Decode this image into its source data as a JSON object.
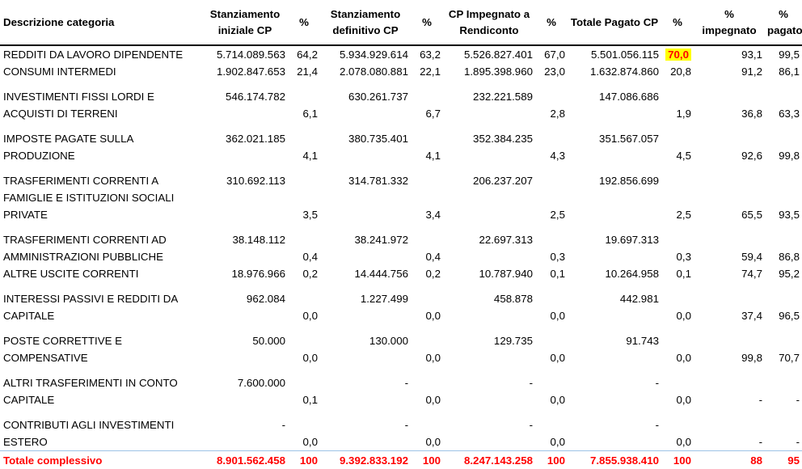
{
  "headers": {
    "desc": "Descrizione categoria",
    "stanz_iniz": "Stanziamento iniziale CP",
    "pct1": "%",
    "stanz_def": "Stanziamento definitivo CP",
    "pct2": "%",
    "cp_imp": "CP Impegnato a Rendiconto",
    "pct3": "%",
    "tot_pag": "Totale Pagato CP",
    "pct4": "%",
    "pct_imp": "% impegnato",
    "pct_pag": "% pagato"
  },
  "rows": [
    {
      "desc": [
        "REDDITI DA LAVORO DIPENDENTE"
      ],
      "stanz_iniz": "5.714.089.563",
      "pct1": "64,2",
      "stanz_def": "5.934.929.614",
      "pct2": "63,2",
      "cp_imp": "5.526.827.401",
      "pct3": "67,0",
      "tot_pag": "5.501.056.115",
      "pct4": "70,0",
      "pct_imp": "93,1",
      "pct_pag": "99,5"
    },
    {
      "desc": [
        "CONSUMI INTERMEDI"
      ],
      "stanz_iniz": "1.902.847.653",
      "pct1": "21,4",
      "stanz_def": "2.078.080.881",
      "pct2": "22,1",
      "cp_imp": "1.895.398.960",
      "pct3": "23,0",
      "tot_pag": "1.632.874.860",
      "pct4": "20,8",
      "pct_imp": "91,2",
      "pct_pag": "86,1"
    },
    {
      "desc": [
        "INVESTIMENTI FISSI LORDI E",
        "ACQUISTI DI TERRENI"
      ],
      "stanz_iniz": "546.174.782",
      "pct1": "6,1",
      "stanz_def": "630.261.737",
      "pct2": "6,7",
      "cp_imp": "232.221.589",
      "pct3": "2,8",
      "tot_pag": "147.086.686",
      "pct4": "1,9",
      "pct_imp": "36,8",
      "pct_pag": "63,3"
    },
    {
      "desc": [
        "IMPOSTE PAGATE SULLA",
        "PRODUZIONE"
      ],
      "stanz_iniz": "362.021.185",
      "pct1": "4,1",
      "stanz_def": "380.735.401",
      "pct2": "4,1",
      "cp_imp": "352.384.235",
      "pct3": "4,3",
      "tot_pag": "351.567.057",
      "pct4": "4,5",
      "pct_imp": "92,6",
      "pct_pag": "99,8"
    },
    {
      "desc": [
        "TRASFERIMENTI CORRENTI A",
        "FAMIGLIE E ISTITUZIONI SOCIALI",
        "PRIVATE"
      ],
      "stanz_iniz": "310.692.113",
      "pct1": "3,5",
      "stanz_def": "314.781.332",
      "pct2": "3,4",
      "cp_imp": "206.237.207",
      "pct3": "2,5",
      "tot_pag": "192.856.699",
      "pct4": "2,5",
      "pct_imp": "65,5",
      "pct_pag": "93,5"
    },
    {
      "desc": [
        "TRASFERIMENTI CORRENTI AD",
        "AMMINISTRAZIONI PUBBLICHE"
      ],
      "stanz_iniz": "38.148.112",
      "pct1": "0,4",
      "stanz_def": "38.241.972",
      "pct2": "0,4",
      "cp_imp": "22.697.313",
      "pct3": "0,3",
      "tot_pag": "19.697.313",
      "pct4": "0,3",
      "pct_imp": "59,4",
      "pct_pag": "86,8"
    },
    {
      "desc": [
        "ALTRE USCITE CORRENTI"
      ],
      "stanz_iniz": "18.976.966",
      "pct1": "0,2",
      "stanz_def": "14.444.756",
      "pct2": "0,2",
      "cp_imp": "10.787.940",
      "pct3": "0,1",
      "tot_pag": "10.264.958",
      "pct4": "0,1",
      "pct_imp": "74,7",
      "pct_pag": "95,2"
    },
    {
      "desc": [
        "INTERESSI PASSIVI E REDDITI DA",
        "CAPITALE"
      ],
      "stanz_iniz": "962.084",
      "pct1": "0,0",
      "stanz_def": "1.227.499",
      "pct2": "0,0",
      "cp_imp": "458.878",
      "pct3": "0,0",
      "tot_pag": "442.981",
      "pct4": "0,0",
      "pct_imp": "37,4",
      "pct_pag": "96,5"
    },
    {
      "desc": [
        "POSTE CORRETTIVE E",
        "COMPENSATIVE"
      ],
      "stanz_iniz": "50.000",
      "pct1": "0,0",
      "stanz_def": "130.000",
      "pct2": "0,0",
      "cp_imp": "129.735",
      "pct3": "0,0",
      "tot_pag": "91.743",
      "pct4": "0,0",
      "pct_imp": "99,8",
      "pct_pag": "70,7"
    },
    {
      "desc": [
        "ALTRI TRASFERIMENTI IN CONTO",
        "CAPITALE"
      ],
      "stanz_iniz": "7.600.000",
      "pct1": "0,1",
      "stanz_def": "-",
      "pct2": "0,0",
      "cp_imp": "-",
      "pct3": "0,0",
      "tot_pag": "-",
      "pct4": "0,0",
      "pct_imp": "-",
      "pct_pag": "-"
    },
    {
      "desc": [
        "CONTRIBUTI AGLI INVESTIMENTI",
        "ESTERO"
      ],
      "stanz_iniz": "-",
      "pct1": "0,0",
      "stanz_def": "-",
      "pct2": "0,0",
      "cp_imp": "-",
      "pct3": "0,0",
      "tot_pag": "-",
      "pct4": "0,0",
      "pct_imp": "-",
      "pct_pag": "-"
    }
  ],
  "total": {
    "desc": "Totale complessivo",
    "stanz_iniz": "8.901.562.458",
    "pct1": "100",
    "stanz_def": "9.392.833.192",
    "pct2": "100",
    "cp_imp": "8.247.143.258",
    "pct3": "100",
    "tot_pag": "7.855.938.410",
    "pct4": "100",
    "pct_imp": "88",
    "pct_pag": "95"
  },
  "highlight": {
    "row": 0,
    "col": "pct4",
    "background": "#ffff00",
    "color": "#ff0000"
  },
  "colors": {
    "total_text": "#ff0000",
    "total_border": "#9dc3e6"
  }
}
